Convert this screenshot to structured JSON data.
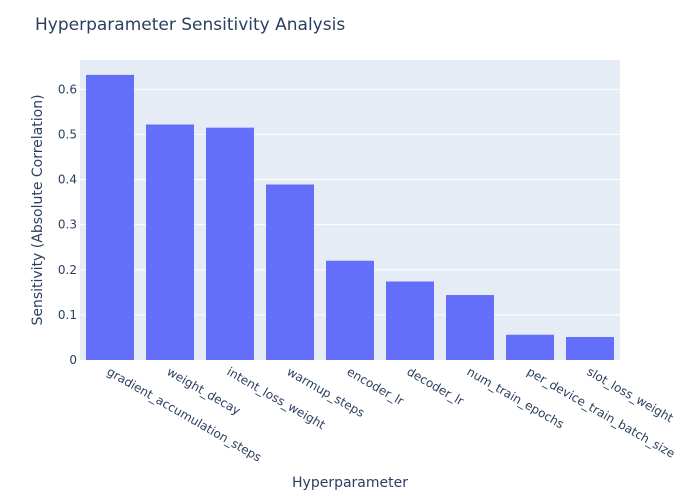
{
  "chart_data": {
    "type": "bar",
    "title": "Hyperparameter Sensitivity Analysis",
    "xlabel": "Hyperparameter",
    "ylabel": "Sensitivity (Absolute Correlation)",
    "categories": [
      "gradient_accumulation_steps",
      "weight_decay",
      "intent_loss_weight",
      "warmup_steps",
      "encoder_lr",
      "decoder_lr",
      "num_train_epochs",
      "per_device_train_batch_size",
      "slot_loss_weight"
    ],
    "values": [
      0.632,
      0.522,
      0.515,
      0.389,
      0.22,
      0.174,
      0.144,
      0.056,
      0.051
    ],
    "ylim": [
      0,
      0.665
    ],
    "yticks": [
      0,
      0.1,
      0.2,
      0.3,
      0.4,
      0.5,
      0.6
    ],
    "ytick_labels": [
      "0",
      "0.1",
      "0.2",
      "0.3",
      "0.4",
      "0.5",
      "0.6"
    ],
    "grid": true,
    "colors": {
      "bar": "#636efa",
      "plot_bg": "#e5ecf6",
      "grid": "#ffffff",
      "text": "#2a3f5f"
    }
  }
}
